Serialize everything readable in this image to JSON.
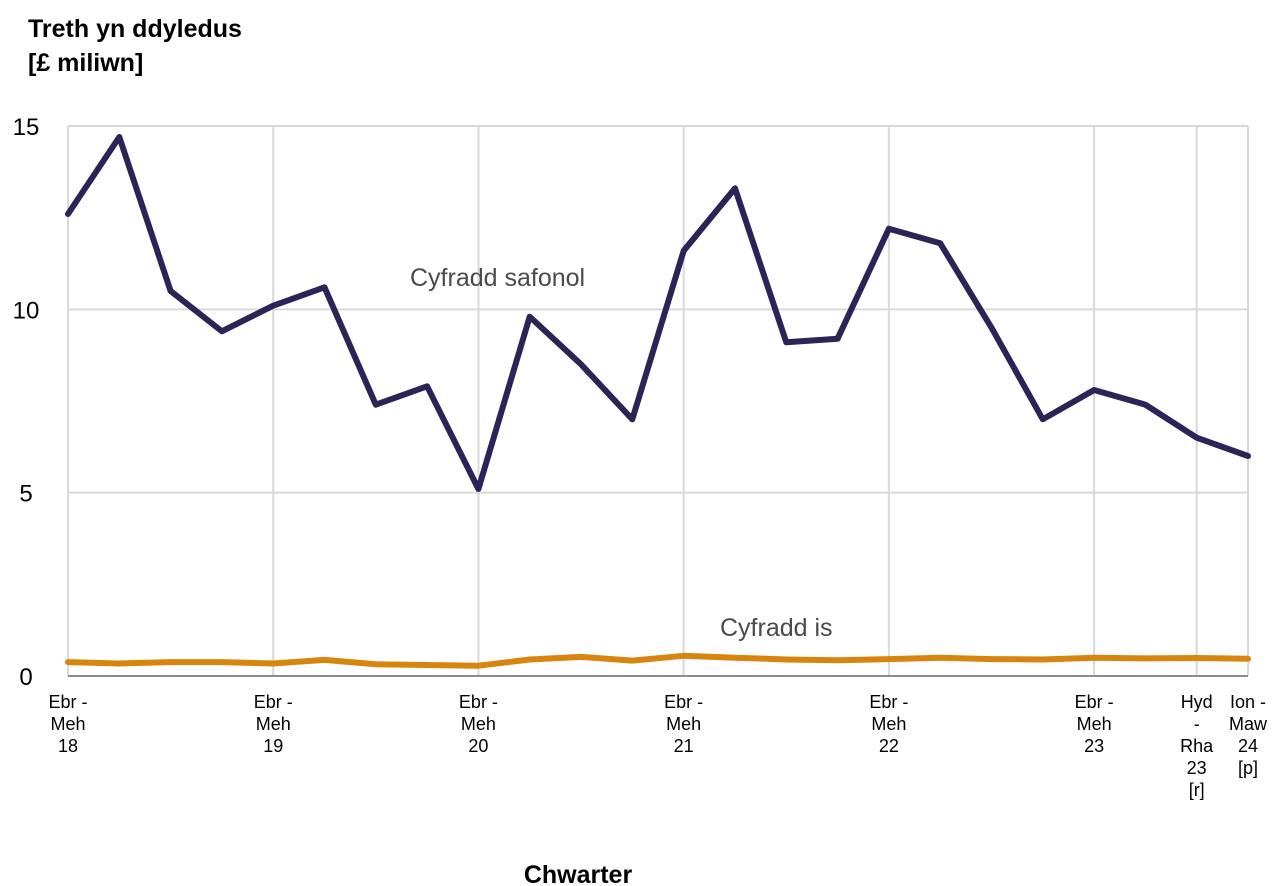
{
  "chart_data": {
    "type": "line",
    "title_lines": [
      "Treth yn ddyledus",
      "[£ miliwn]"
    ],
    "xlabel": "Chwarter",
    "ylim": [
      0,
      15
    ],
    "yticks": [
      "0",
      "5",
      "10",
      "15"
    ],
    "grid": true,
    "x_tick_labels": [
      {
        "index": 0,
        "lines": [
          "Ebr -",
          "Meh",
          "18"
        ]
      },
      {
        "index": 4,
        "lines": [
          "Ebr -",
          "Meh",
          "19"
        ]
      },
      {
        "index": 8,
        "lines": [
          "Ebr -",
          "Meh",
          "20"
        ]
      },
      {
        "index": 12,
        "lines": [
          "Ebr -",
          "Meh",
          "21"
        ]
      },
      {
        "index": 16,
        "lines": [
          "Ebr -",
          "Meh",
          "22"
        ]
      },
      {
        "index": 20,
        "lines": [
          "Ebr -",
          "Meh",
          "23"
        ]
      },
      {
        "index": 22,
        "lines": [
          "Hyd",
          "-",
          "Rha",
          "23",
          "[r]"
        ]
      },
      {
        "index": 23,
        "lines": [
          "Ion -",
          "Maw",
          "24",
          "[p]"
        ]
      }
    ],
    "series": [
      {
        "name": "Cyfradd safonol",
        "color": "#2b2557",
        "values": [
          12.6,
          14.7,
          10.5,
          9.4,
          10.1,
          10.6,
          7.4,
          7.9,
          5.1,
          9.8,
          8.5,
          7.0,
          11.6,
          13.3,
          9.1,
          9.2,
          12.2,
          11.8,
          9.5,
          7.0,
          7.8,
          7.4,
          6.5,
          6.0
        ]
      },
      {
        "name": "Cyfradd is",
        "color": "#d8850f",
        "values": [
          0.38,
          0.34,
          0.38,
          0.38,
          0.34,
          0.44,
          0.32,
          0.3,
          0.28,
          0.45,
          0.52,
          0.42,
          0.55,
          0.5,
          0.45,
          0.43,
          0.46,
          0.5,
          0.46,
          0.45,
          0.5,
          0.48,
          0.49,
          0.47
        ]
      }
    ]
  }
}
